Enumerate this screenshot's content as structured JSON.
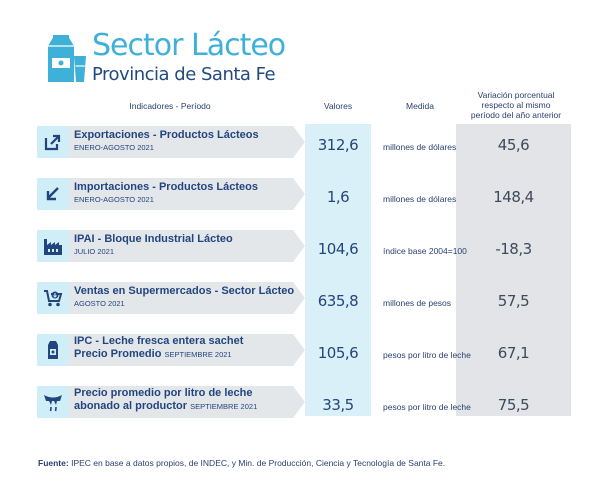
{
  "header": {
    "title": "Sector Lácteo",
    "subtitle": "Provincia de Santa Fe"
  },
  "columns": {
    "indicadores": "Indicadores - Período",
    "valores": "Valores",
    "medida": "Medida",
    "variacion": "Variación porcentual respecto al mismo período del año anterior"
  },
  "rows": [
    {
      "icon": "export-arrow-icon",
      "name": "Exportaciones - Productos Lácteos",
      "period": "ENERO-AGOSTO 2021",
      "value": "312,6",
      "unit": "millones de dólares",
      "variation": "45,6"
    },
    {
      "icon": "import-arrow-icon",
      "name": "Importaciones - Productos Lácteos",
      "period": "ENERO-AGOSTO 2021",
      "value": "1,6",
      "unit": "millones de dólares",
      "variation": "148,4"
    },
    {
      "icon": "factory-icon",
      "name": "IPAI - Bloque Industrial Lácteo",
      "period": "JULIO 2021",
      "value": "104,6",
      "unit": "índice base 2004=100",
      "variation": "-18,3"
    },
    {
      "icon": "shopping-cart-icon",
      "name": "Ventas en Supermercados - Sector Lácteo",
      "period": "AGOSTO 2021",
      "value": "635,8",
      "unit": "millones de pesos",
      "variation": "57,5"
    },
    {
      "icon": "milk-carton-icon",
      "name_line1": "IPC - Leche fresca entera sachet",
      "name_line2": "Precio Promedio",
      "period": "SEPTIEMBRE 2021",
      "value": "105,6",
      "unit": "pesos por litro de leche",
      "variation": "67,1"
    },
    {
      "icon": "udder-icon",
      "name_line1": "Precio promedio por litro de leche",
      "name_line2": "abonado al productor",
      "period": "SEPTIEMBRE 2021",
      "value": "33,5",
      "unit": "pesos por litro de leche",
      "variation": "75,5"
    }
  ],
  "footer": {
    "label": "Fuente:",
    "text": "IPEC en base a datos propios, de INDEC, y Min. de Producción, Ciencia y Tecnología de Santa Fe."
  },
  "colors": {
    "accent": "#3fb0d8",
    "navy": "#22457f",
    "valores_bg": "#daf0f8",
    "variacion_bg": "#e2e4e7"
  }
}
